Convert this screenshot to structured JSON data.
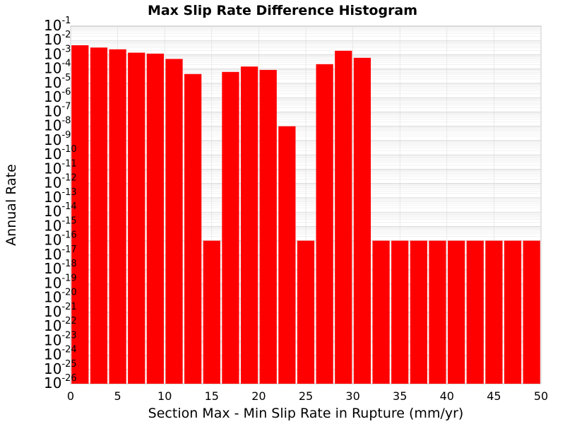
{
  "chart_data": {
    "type": "bar",
    "title": "Max Slip Rate Difference Histogram",
    "xlabel": "Section Max - Min Slip Rate in Rupture (mm/yr)",
    "ylabel": "Annual Rate",
    "xlim": [
      0,
      50
    ],
    "ylim_exponent": [
      -26,
      -1
    ],
    "y_scale": "log",
    "grid": true,
    "bar_color": "#ff0000",
    "bin_width": 2,
    "x_ticks": [
      0,
      5,
      10,
      15,
      20,
      25,
      30,
      35,
      40,
      45,
      50
    ],
    "y_tick_base": "10",
    "y_tick_exponents": [
      -1,
      -2,
      -3,
      -4,
      -5,
      -6,
      -7,
      -8,
      -9,
      -10,
      -11,
      -12,
      -13,
      -14,
      -15,
      -16,
      -17,
      -18,
      -19,
      -20,
      -21,
      -22,
      -23,
      -24,
      -25,
      -26
    ],
    "bin_starts": [
      0,
      2,
      4,
      6,
      8,
      10,
      12,
      14,
      16,
      18,
      20,
      22,
      24,
      26,
      28,
      30,
      32,
      34,
      36,
      38,
      40,
      42,
      44,
      46,
      48
    ],
    "values": [
      0.0046,
      0.0032,
      0.0024,
      0.0014,
      0.0012,
      0.00051,
      4.5e-05,
      1e-16,
      6.3e-05,
      0.00015,
      8.7e-05,
      1e-08,
      1e-16,
      0.00022,
      0.0019,
      0.00061,
      1e-16,
      1e-16,
      1e-16,
      1e-16,
      1e-16,
      1e-16,
      1e-16,
      1e-16,
      1e-16
    ]
  }
}
